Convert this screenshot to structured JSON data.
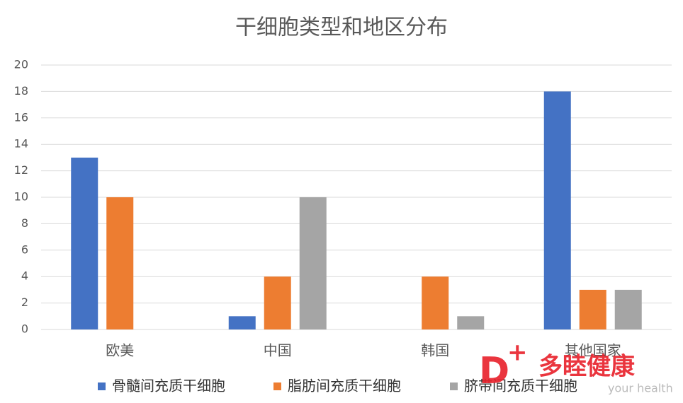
{
  "chart_data": {
    "type": "bar",
    "title": "干细胞类型和地区分布",
    "categories": [
      "欧美",
      "中国",
      "韩国",
      "其他国家"
    ],
    "series": [
      {
        "name": "骨髓间充质干细胞",
        "color": "#4472c4",
        "values": [
          13,
          1,
          0,
          18
        ]
      },
      {
        "name": "脂肪间充质干细胞",
        "color": "#ed7d31",
        "values": [
          10,
          4,
          4,
          3
        ]
      },
      {
        "name": "脐带间充质干细胞",
        "color": "#a5a5a5",
        "values": [
          0,
          10,
          1,
          3
        ]
      }
    ],
    "ylim": [
      0,
      20
    ],
    "yticks": [
      0,
      2,
      4,
      6,
      8,
      10,
      12,
      14,
      16,
      18,
      20
    ],
    "grid": true,
    "legend": "bottom",
    "watermark": {
      "brand": "多睦健康",
      "slogan": "your health"
    }
  }
}
